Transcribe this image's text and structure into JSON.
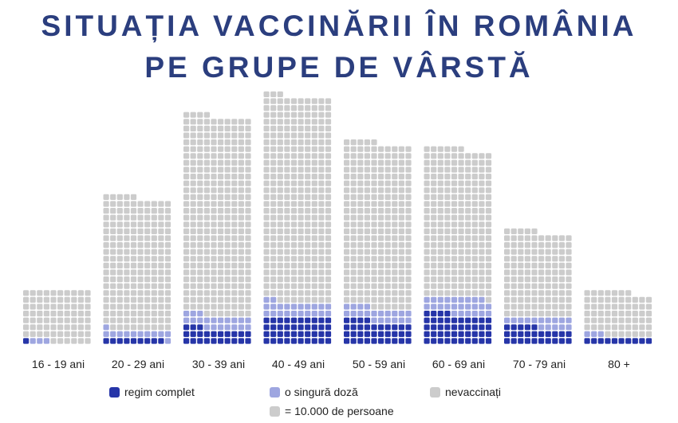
{
  "title": {
    "line1": "SITUAȚIA VACCINĂRII ÎN ROMÂNIA",
    "line2": "PE GRUPE DE VÂRSTĂ"
  },
  "legend": {
    "complete": "regim complet",
    "single": "o singură doză",
    "unvaccinated": "nevaccinați",
    "unit": "= 10.000 de persoane"
  },
  "colors": {
    "complete": "#2635a8",
    "single": "#9ea6e0",
    "unvaccinated": "#cccccc",
    "title": "#2b3e7e"
  },
  "chart_data": {
    "type": "waffle",
    "unit": "= 10.000 de persoane",
    "categories": [
      "16 - 19 ani",
      "20 - 29 ani",
      "30 - 39 ani",
      "40 - 49 ani",
      "50 - 59 ani",
      "60 - 69 ani",
      "70 - 79 ani",
      "80 +"
    ],
    "series": [
      {
        "name": "regim complet",
        "values": [
          1,
          9,
          23,
          40,
          34,
          44,
          25,
          10
        ]
      },
      {
        "name": "o singură doză",
        "values": [
          3,
          12,
          20,
          22,
          20,
          25,
          15,
          3
        ]
      },
      {
        "name": "nevaccinați",
        "values": [
          76,
          194,
          291,
          301,
          241,
          217,
          125,
          64
        ]
      }
    ]
  }
}
